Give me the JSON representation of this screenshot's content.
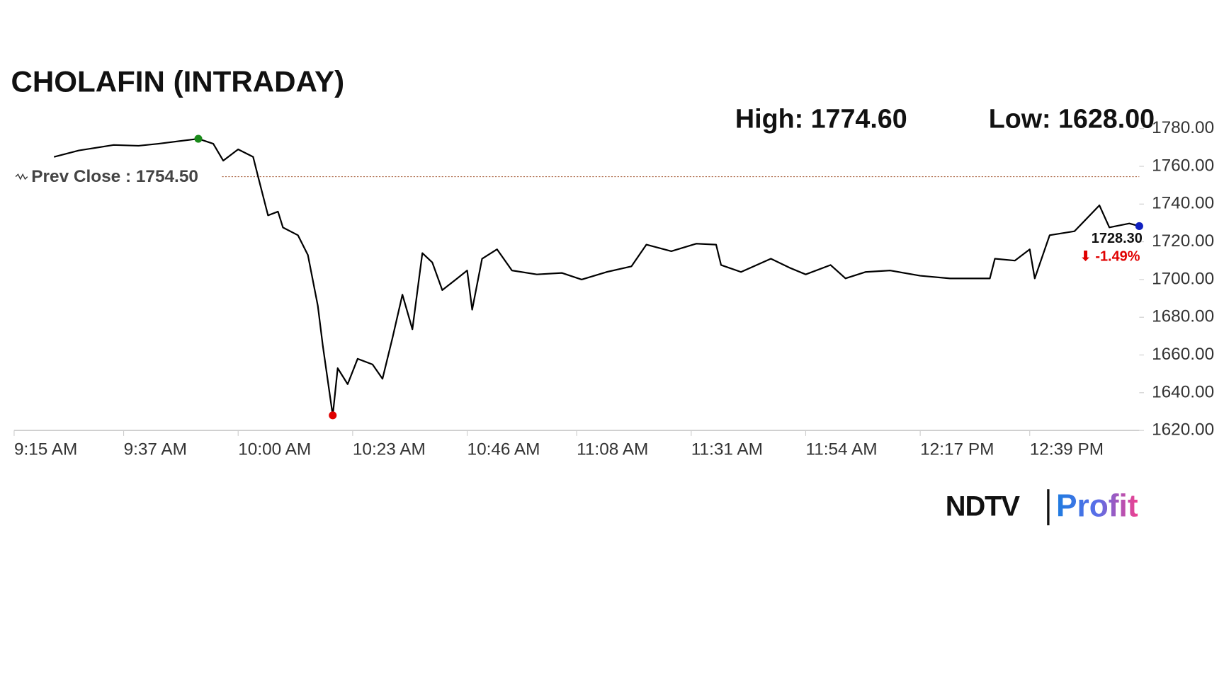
{
  "chart_data": {
    "type": "line",
    "title": "CHOLAFIN (INTRADAY)",
    "high": {
      "value": 1774.6,
      "label": "High: 1774.60",
      "color": "#1a8a1a"
    },
    "low": {
      "value": 1628,
      "label": "Low: 1628.00",
      "color": "#e00000"
    },
    "prev_close": {
      "value": 1754.5,
      "label": "Prev Close : 1754.50",
      "color": "#a0522d"
    },
    "last": {
      "value": 1728.3,
      "label": "1728.30",
      "change": -1.49,
      "change_label": "⬇ -1.49%",
      "color": "#1020c0"
    },
    "x": [
      "9:23 AM",
      "9:28 AM",
      "9:35 AM",
      "9:40 AM",
      "9:44 AM",
      "9:52 AM",
      "9:55 AM",
      "9:57 AM",
      "10:00 AM",
      "10:03 AM",
      "10:04 AM",
      "10:06 AM",
      "10:08 AM",
      "10:09 AM",
      "10:12 AM",
      "10:14 AM",
      "10:16 AM",
      "10:17 AM",
      "10:19 AM",
      "10:20 AM",
      "10:22 AM",
      "10:24 AM",
      "10:27 AM",
      "10:29 AM",
      "10:31 AM",
      "10:33 AM",
      "10:35 AM",
      "10:37 AM",
      "10:39 AM",
      "10:41 AM",
      "10:44 AM",
      "10:46 AM",
      "10:47 AM",
      "10:49 AM",
      "10:52 AM",
      "10:55 AM",
      "11:00 AM",
      "11:05 AM",
      "11:09 AM",
      "11:14 AM",
      "11:19 AM",
      "11:22 AM",
      "11:27 AM",
      "11:32 AM",
      "11:36 AM",
      "11:37 AM",
      "11:41 AM",
      "11:47 AM",
      "11:51 AM",
      "11:54 AM",
      "11:59 AM",
      "12:02 PM",
      "12:06 PM",
      "12:11 PM",
      "12:17 PM",
      "12:23 PM",
      "12:31 PM",
      "12:32 PM",
      "12:36 PM",
      "12:39 PM",
      "12:40 PM",
      "12:43 PM",
      "12:48 PM",
      "12:53 PM",
      "12:55 PM",
      "12:59 PM",
      "1:01 PM"
    ],
    "series": [
      {
        "name": "CHOLAFIN",
        "color": "#000000",
        "values": [
          1765,
          1768.4,
          1771.3,
          1770.9,
          1772,
          1774.6,
          1772,
          1763,
          1769,
          1765,
          1754.6,
          1734,
          1736,
          1727.6,
          1723.5,
          1713,
          1686,
          1665,
          1628,
          1653,
          1644.5,
          1658,
          1655,
          1647.4,
          1669,
          1692,
          1673.6,
          1714,
          1709,
          1694.4,
          1700.6,
          1704.8,
          1684,
          1711,
          1716,
          1704.8,
          1702.7,
          1703.5,
          1700,
          1704,
          1707,
          1718.5,
          1715,
          1719,
          1718.5,
          1707.7,
          1704,
          1711,
          1706,
          1702.7,
          1707.7,
          1700.6,
          1704,
          1704.8,
          1702,
          1700.6,
          1700.6,
          1711,
          1710,
          1716,
          1700.6,
          1723.5,
          1725.6,
          1739.3,
          1727.6,
          1729.7,
          1728.3
        ]
      }
    ],
    "xlim": [
      "9:15 AM",
      "1:01 PM"
    ],
    "xticks": [
      "9:15 AM",
      "9:37 AM",
      "10:00 AM",
      "10:23 AM",
      "10:46 AM",
      "11:08 AM",
      "11:31 AM",
      "11:54 AM",
      "12:17 PM",
      "12:39 PM"
    ],
    "ylim": [
      1620,
      1780
    ],
    "yticks": [
      {
        "value": 1620,
        "label": "1620.00"
      },
      {
        "value": 1640,
        "label": "1640.00"
      },
      {
        "value": 1660,
        "label": "1660.00"
      },
      {
        "value": 1680,
        "label": "1680.00"
      },
      {
        "value": 1700,
        "label": "1700.00"
      },
      {
        "value": 1720,
        "label": "1720.00"
      },
      {
        "value": 1740,
        "label": "1740.00"
      },
      {
        "value": 1760,
        "label": "1760.00"
      },
      {
        "value": 1780,
        "label": "1780.00"
      }
    ],
    "grid": false
  },
  "logo": {
    "left": "NDTV",
    "right": "Profit"
  }
}
